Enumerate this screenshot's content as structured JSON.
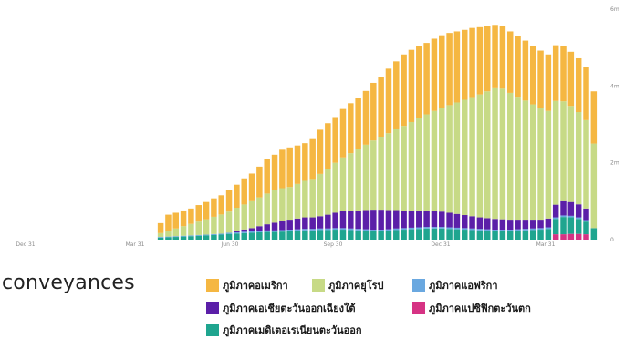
{
  "caption": "conveyances",
  "chart_data": {
    "type": "bar",
    "stacked": true,
    "x_tick_labels": [
      "Dec 31",
      "Mar 31",
      "Jun 30",
      "Sep 30",
      "Dec 31",
      "Mar 31"
    ],
    "y_tick_labels": [
      "0",
      "2m",
      "4m",
      "6m"
    ],
    "ylim": [
      0,
      6000000
    ],
    "grid": false,
    "legend_position": "bottom",
    "categories": [
      "1",
      "2",
      "3",
      "4",
      "5",
      "6",
      "7",
      "8",
      "9",
      "10",
      "11",
      "12",
      "13",
      "14",
      "15",
      "16",
      "17",
      "18",
      "19",
      "20",
      "21",
      "22",
      "23",
      "24",
      "25",
      "26",
      "27",
      "28",
      "29",
      "30",
      "31",
      "32",
      "33",
      "34",
      "35",
      "36",
      "37",
      "38",
      "39",
      "40",
      "41",
      "42",
      "43",
      "44",
      "45",
      "46",
      "47",
      "48",
      "49",
      "50",
      "51",
      "52",
      "53",
      "54",
      "55",
      "56",
      "57",
      "58",
      "59",
      "60",
      "61",
      "62",
      "63",
      "64",
      "65",
      "66",
      "67",
      "68",
      "69",
      "70"
    ],
    "series": [
      {
        "name": "ภูมิภาคแปซิฟิกตะวันตก",
        "color": "#d63384",
        "values": [
          0,
          0,
          0,
          0,
          0,
          0,
          0,
          0,
          0,
          0,
          0,
          0,
          0,
          0,
          0,
          0,
          0,
          0,
          0,
          0,
          0,
          0,
          0,
          0,
          0,
          0,
          0,
          0,
          0,
          0,
          0,
          0,
          0,
          0,
          0,
          0,
          0,
          0,
          0,
          0,
          0,
          0,
          0,
          0,
          0,
          0,
          0,
          0,
          0,
          0,
          0,
          0,
          0,
          0,
          0,
          0,
          0,
          0,
          0,
          0,
          0,
          0,
          0,
          0,
          140000,
          140000,
          150000,
          150000,
          140000,
          0
        ]
      },
      {
        "name": "ภูมิภาคเมดิเตอเรเนียนตะวันออก",
        "color": "#1fa58f",
        "values": [
          0,
          0,
          0,
          0,
          0,
          0,
          0,
          0,
          0,
          0,
          0,
          0,
          50000,
          60000,
          70000,
          80000,
          90000,
          100000,
          110000,
          120000,
          130000,
          150000,
          160000,
          170000,
          180000,
          190000,
          200000,
          200000,
          210000,
          220000,
          230000,
          240000,
          240000,
          250000,
          250000,
          260000,
          260000,
          250000,
          240000,
          230000,
          220000,
          220000,
          230000,
          250000,
          260000,
          270000,
          280000,
          290000,
          290000,
          290000,
          280000,
          270000,
          260000,
          250000,
          240000,
          230000,
          220000,
          220000,
          220000,
          230000,
          240000,
          250000,
          260000,
          280000,
          400000,
          450000,
          430000,
          390000,
          330000,
          300000
        ]
      },
      {
        "name": "ภูมิภาคแอฟริกา",
        "color": "#6aa8e0",
        "values": [
          0,
          0,
          0,
          0,
          0,
          0,
          0,
          0,
          0,
          0,
          0,
          0,
          20000,
          20000,
          20000,
          20000,
          20000,
          20000,
          20000,
          25000,
          25000,
          30000,
          30000,
          35000,
          40000,
          40000,
          40000,
          40000,
          40000,
          40000,
          40000,
          40000,
          40000,
          40000,
          40000,
          40000,
          40000,
          40000,
          40000,
          40000,
          40000,
          40000,
          40000,
          40000,
          40000,
          40000,
          40000,
          40000,
          40000,
          40000,
          40000,
          40000,
          40000,
          40000,
          40000,
          40000,
          40000,
          40000,
          40000,
          40000,
          40000,
          40000,
          40000,
          40000,
          40000,
          40000,
          40000,
          40000,
          40000,
          0
        ]
      },
      {
        "name": "ภูมิภาคเอเชียตะวันออกเฉียงใต้",
        "color": "#5b1fa8",
        "values": [
          0,
          0,
          0,
          0,
          0,
          0,
          0,
          0,
          0,
          0,
          0,
          0,
          0,
          0,
          0,
          0,
          0,
          0,
          0,
          0,
          0,
          0,
          40000,
          60000,
          80000,
          120000,
          160000,
          200000,
          240000,
          260000,
          280000,
          300000,
          300000,
          320000,
          360000,
          400000,
          440000,
          460000,
          480000,
          500000,
          520000,
          520000,
          500000,
          480000,
          460000,
          450000,
          440000,
          430000,
          420000,
          400000,
          380000,
          360000,
          340000,
          320000,
          300000,
          290000,
          280000,
          270000,
          260000,
          250000,
          240000,
          230000,
          220000,
          230000,
          330000,
          370000,
          360000,
          340000,
          300000,
          0
        ]
      },
      {
        "name": "ภูมิภาคยุโรป",
        "color": "#c7da86",
        "values": [
          0,
          0,
          0,
          0,
          0,
          0,
          0,
          0,
          0,
          0,
          0,
          0,
          100000,
          150000,
          200000,
          250000,
          300000,
          350000,
          400000,
          450000,
          500000,
          550000,
          600000,
          650000,
          700000,
          750000,
          800000,
          850000,
          850000,
          850000,
          900000,
          950000,
          1000000,
          1100000,
          1200000,
          1300000,
          1400000,
          1500000,
          1600000,
          1700000,
          1800000,
          1900000,
          2000000,
          2100000,
          2200000,
          2300000,
          2400000,
          2500000,
          2600000,
          2700000,
          2800000,
          2900000,
          3000000,
          3100000,
          3200000,
          3300000,
          3400000,
          3400000,
          3300000,
          3200000,
          3100000,
          3000000,
          2900000,
          2800000,
          2700000,
          2600000,
          2500000,
          2400000,
          2300000,
          2200000
        ]
      },
      {
        "name": "ภูมิภาคอเมริกา",
        "color": "#f5b742",
        "values": [
          0,
          0,
          0,
          0,
          0,
          0,
          0,
          0,
          0,
          0,
          0,
          0,
          260000,
          420000,
          410000,
          410000,
          400000,
          430000,
          450000,
          480000,
          500000,
          560000,
          600000,
          680000,
          720000,
          800000,
          890000,
          920000,
          1000000,
          1030000,
          1000000,
          980000,
          1060000,
          1150000,
          1180000,
          1190000,
          1260000,
          1300000,
          1330000,
          1400000,
          1500000,
          1550000,
          1680000,
          1770000,
          1860000,
          1880000,
          1880000,
          1860000,
          1880000,
          1890000,
          1880000,
          1850000,
          1820000,
          1800000,
          1750000,
          1700000,
          1650000,
          1620000,
          1600000,
          1580000,
          1560000,
          1530000,
          1500000,
          1470000,
          1450000,
          1430000,
          1410000,
          1400000,
          1380000,
          1360000
        ]
      }
    ]
  },
  "legend": {
    "items": [
      {
        "label": "ภูมิภาคอเมริกา",
        "color": "#f5b742"
      },
      {
        "label": "ภูมิภาคยุโรป",
        "color": "#c7da86"
      },
      {
        "label": "ภูมิภาคแอฟริกา",
        "color": "#6aa8e0"
      },
      {
        "label": "ภูมิภาคเอเชียตะวันออกเฉียงใต้",
        "color": "#5b1fa8"
      },
      {
        "label": "ภูมิภาคแปซิฟิกตะวันตก",
        "color": "#d63384"
      },
      {
        "label": "ภูมิภาคเมดิเตอเรเนียนตะวันออก",
        "color": "#1fa58f"
      }
    ]
  }
}
